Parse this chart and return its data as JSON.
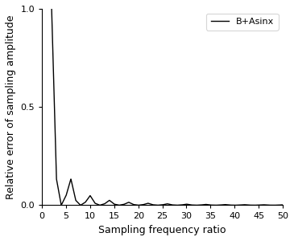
{
  "title": "",
  "xlabel": "Sampling frequency ratio",
  "ylabel": "Relative error of sampling amplitude",
  "xlim": [
    0,
    50
  ],
  "ylim": [
    0,
    1.0
  ],
  "xticks": [
    0,
    5,
    10,
    15,
    20,
    25,
    30,
    35,
    40,
    45,
    50
  ],
  "yticks": [
    0.0,
    0.5,
    1.0
  ],
  "legend_label": "B+Asinx",
  "line_color": "#000000",
  "line_width": 1.0,
  "background_color": "#ffffff",
  "figsize": [
    3.65,
    3.0
  ],
  "dpi": 100
}
